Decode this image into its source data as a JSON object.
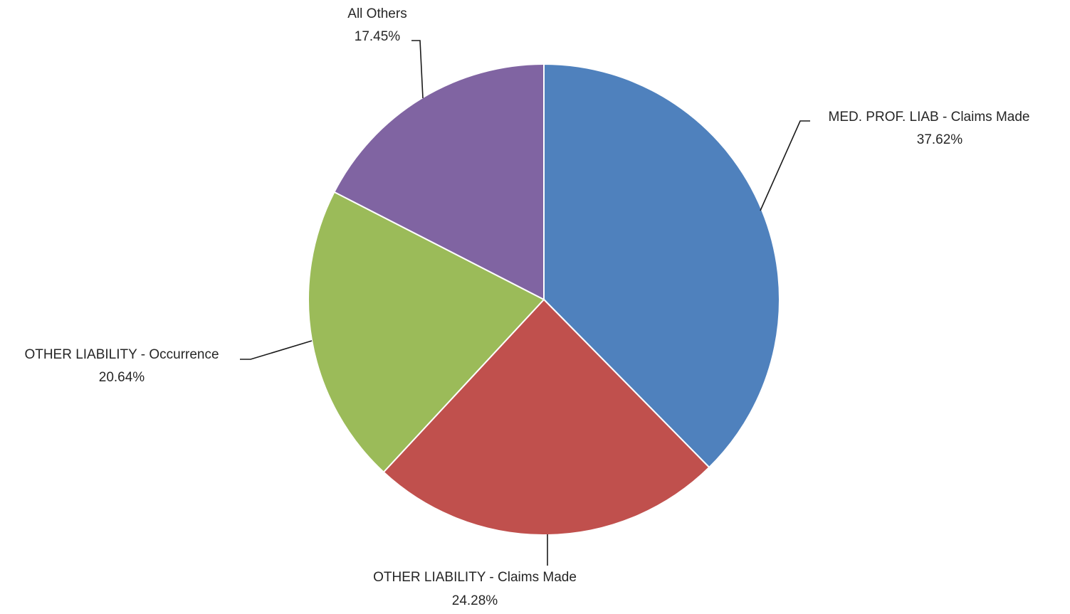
{
  "chart_data": {
    "type": "pie",
    "title": "",
    "start_angle_deg": 0,
    "direction": "clockwise",
    "slices": [
      {
        "label": "MED. PROF. LIAB - Claims Made",
        "value": 37.62,
        "value_label": "37.62%",
        "color": "#4F81BD"
      },
      {
        "label": "OTHER LIABILITY - Claims Made",
        "value": 24.28,
        "value_label": "24.28%",
        "color": "#C0504D"
      },
      {
        "label": "OTHER LIABILITY - Occurrence",
        "value": 20.64,
        "value_label": "20.64%",
        "color": "#9BBB59"
      },
      {
        "label": "All Others",
        "value": 17.45,
        "value_label": "17.45%",
        "color": "#8064A2"
      }
    ],
    "legend": "none",
    "data_labels": "outside-with-leader-lines"
  }
}
